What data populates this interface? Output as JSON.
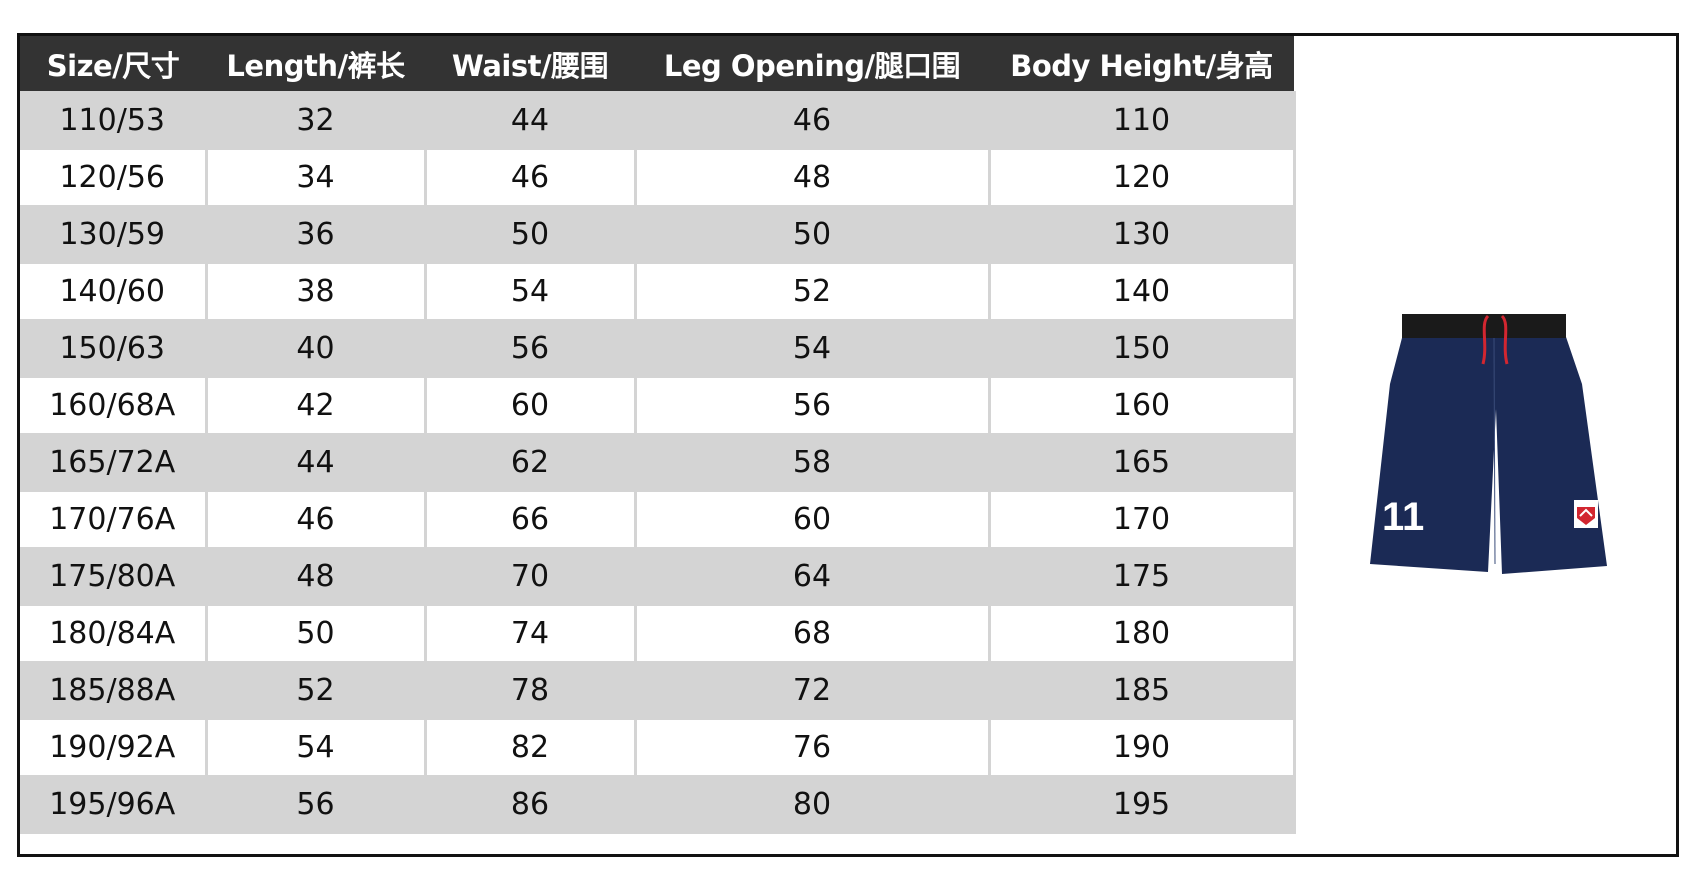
{
  "headers": [
    "Size/尺寸",
    "Length/裤长",
    "Waist/腰围",
    "Leg Opening/腿口围",
    "Body Height/身高"
  ],
  "rows": [
    [
      "110/53",
      "32",
      "44",
      "46",
      "110"
    ],
    [
      "120/56",
      "34",
      "46",
      "48",
      "120"
    ],
    [
      "130/59",
      "36",
      "50",
      "50",
      "130"
    ],
    [
      "140/60",
      "38",
      "54",
      "52",
      "140"
    ],
    [
      "150/63",
      "40",
      "56",
      "54",
      "150"
    ],
    [
      "160/68A",
      "42",
      "60",
      "56",
      "160"
    ],
    [
      "165/72A",
      "44",
      "62",
      "58",
      "165"
    ],
    [
      "170/76A",
      "46",
      "66",
      "60",
      "170"
    ],
    [
      "175/80A",
      "48",
      "70",
      "64",
      "175"
    ],
    [
      "180/84A",
      "50",
      "74",
      "68",
      "180"
    ],
    [
      "185/88A",
      "52",
      "78",
      "72",
      "185"
    ],
    [
      "190/92A",
      "54",
      "82",
      "76",
      "190"
    ],
    [
      "195/96A",
      "56",
      "86",
      "80",
      "195"
    ]
  ],
  "product_image": {
    "number": "11",
    "shorts_color": "#1b2a55",
    "waistband_color": "#1a1a1a",
    "drawstring_color": "#d22630"
  }
}
